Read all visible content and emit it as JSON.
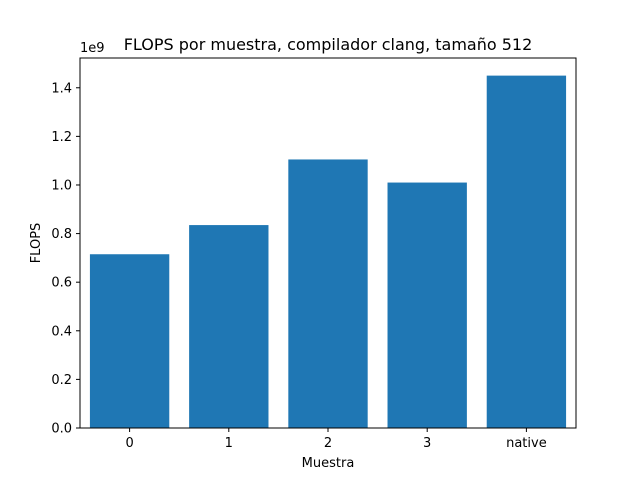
{
  "chart_data": {
    "type": "bar",
    "title": "FLOPS por muestra, compilador clang, tamaño 512",
    "xlabel": "Muestra",
    "ylabel": "FLOPS",
    "y_offset_label": "1e9",
    "categories": [
      "0",
      "1",
      "2",
      "3",
      "native"
    ],
    "values": [
      0.715,
      0.835,
      1.105,
      1.01,
      1.45
    ],
    "value_scale": 1000000000.0,
    "ylim": [
      0,
      1.5225
    ],
    "yticks": [
      0.0,
      0.2,
      0.4,
      0.6,
      0.8,
      1.0,
      1.2,
      1.4
    ],
    "ytick_labels": [
      "0.0",
      "0.2",
      "0.4",
      "0.6",
      "0.8",
      "1.0",
      "1.2",
      "1.4"
    ],
    "bar_color": "#1f77b4",
    "grid": false,
    "legend": false
  }
}
